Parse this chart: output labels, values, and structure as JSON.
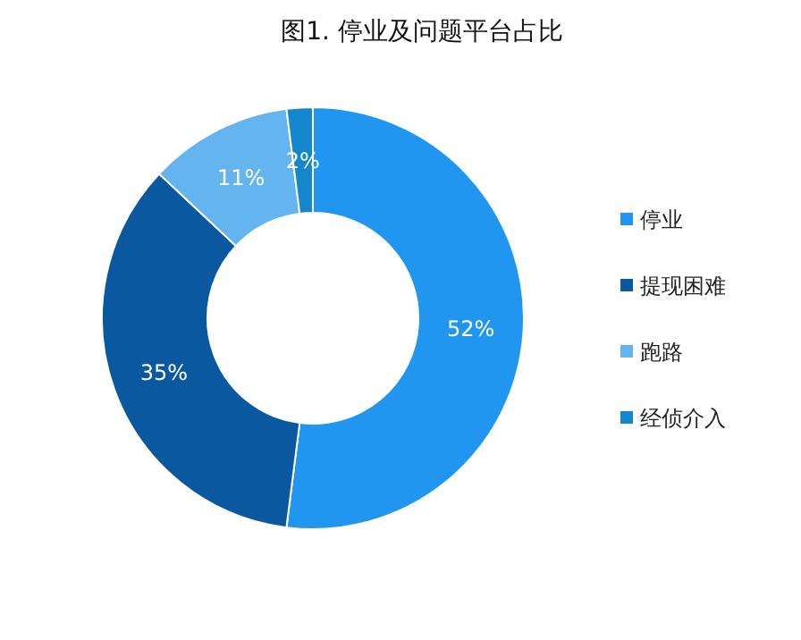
{
  "chart_data": {
    "type": "donut",
    "title": "图1.   停业及问题平台占比",
    "categories": [
      "停业",
      "提现困难",
      "跑路",
      "经侦介入"
    ],
    "values": [
      52,
      35,
      11,
      2
    ],
    "value_labels": [
      "52%",
      "35%",
      "11%",
      "2%"
    ],
    "colors": [
      "#2196f0",
      "#0a58a0",
      "#64b4f0",
      "#1486cc"
    ],
    "legend": "right"
  }
}
